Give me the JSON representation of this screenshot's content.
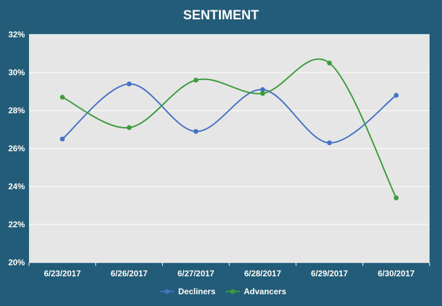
{
  "chart_data": {
    "type": "line",
    "title": "SENTIMENT",
    "xlabel": "",
    "ylabel": "",
    "categories": [
      "6/23/2017",
      "6/26/2017",
      "6/27/2017",
      "6/28/2017",
      "6/29/2017",
      "6/30/2017"
    ],
    "y_ticks": [
      "20%",
      "22%",
      "24%",
      "26%",
      "28%",
      "30%",
      "32%"
    ],
    "ylim": [
      20,
      32
    ],
    "y_unit": "%",
    "grid": true,
    "smooth": true,
    "legend_position": "bottom",
    "series": [
      {
        "name": "Decliners",
        "color": "#4472c4",
        "values": [
          26.5,
          29.4,
          26.9,
          29.1,
          26.3,
          28.8
        ]
      },
      {
        "name": "Advancers",
        "color": "#3c9b3c",
        "values": [
          28.7,
          27.1,
          29.6,
          28.9,
          30.5,
          23.4
        ]
      }
    ],
    "colors": {
      "background": "#235c78",
      "plot_area": "#e6e6e6",
      "gridline": "#ffffff",
      "text": "#ffffff"
    }
  }
}
